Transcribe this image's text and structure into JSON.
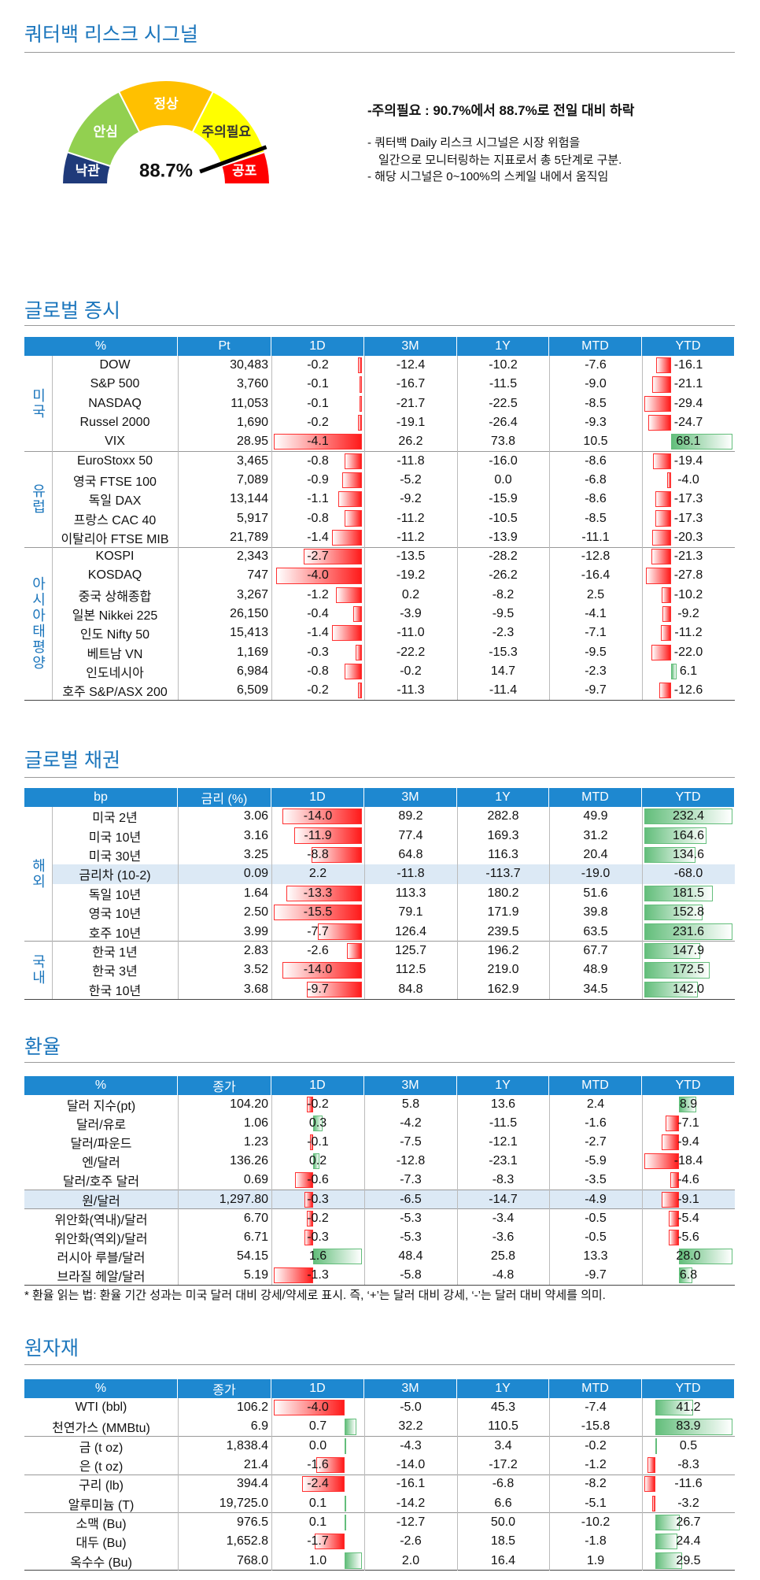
{
  "header": {
    "title": "쿼터백 리스크 시그널"
  },
  "gauge": {
    "value": 88.7,
    "label": "88.7%",
    "zones": [
      "낙관",
      "안심",
      "정상",
      "주의필요",
      "공포"
    ]
  },
  "summary": {
    "headline": "-주의필요 : 90.7%에서 88.7%로 전일 대비 하락",
    "notes": [
      "- 쿼터백 Daily 리스크 시그널은 시장 위험을",
      "일간으로 모니터링하는 지표로서 총 5단계로 구분.",
      "- 해당 시그널은 0~100%의 스케일 내에서 움직임"
    ]
  },
  "sections": [
    {
      "title": "글로벌 증시",
      "table": {
        "columns": [
          {
            "label": "%"
          },
          {
            "label": "Pt"
          },
          {
            "label": "1D",
            "bars": true
          },
          {
            "label": "3M"
          },
          {
            "label": "1Y"
          },
          {
            "label": "MTD"
          },
          {
            "label": "YTD",
            "bars": true
          }
        ],
        "groups": [
          {
            "label": "미국",
            "rows": [
              {
                "name": "DOW",
                "values": [
                  "30,483",
                  "-0.2",
                  "-12.4",
                  "-10.2",
                  "-7.6",
                  "-16.1"
                ]
              },
              {
                "name": "S&P 500",
                "values": [
                  "3,760",
                  "-0.1",
                  "-16.7",
                  "-11.5",
                  "-9.0",
                  "-21.1"
                ]
              },
              {
                "name": "NASDAQ",
                "values": [
                  "11,053",
                  "-0.1",
                  "-21.7",
                  "-22.5",
                  "-8.5",
                  "-29.4"
                ]
              },
              {
                "name": "Russel 2000",
                "values": [
                  "1,690",
                  "-0.2",
                  "-19.1",
                  "-26.4",
                  "-9.3",
                  "-24.7"
                ]
              },
              {
                "name": "VIX",
                "values": [
                  "28.95",
                  "-4.1",
                  "26.2",
                  "73.8",
                  "10.5",
                  "68.1"
                ]
              }
            ]
          },
          {
            "label": "유럽",
            "rows": [
              {
                "name": "EuroStoxx 50",
                "values": [
                  "3,465",
                  "-0.8",
                  "-11.8",
                  "-16.0",
                  "-8.6",
                  "-19.4"
                ]
              },
              {
                "name": "영국 FTSE 100",
                "values": [
                  "7,089",
                  "-0.9",
                  "-5.2",
                  "0.0",
                  "-6.8",
                  "-4.0"
                ]
              },
              {
                "name": "독일 DAX",
                "values": [
                  "13,144",
                  "-1.1",
                  "-9.2",
                  "-15.9",
                  "-8.6",
                  "-17.3"
                ]
              },
              {
                "name": "프랑스 CAC 40",
                "values": [
                  "5,917",
                  "-0.8",
                  "-11.2",
                  "-10.5",
                  "-8.5",
                  "-17.3"
                ]
              },
              {
                "name": "이탈리아 FTSE MIB",
                "values": [
                  "21,789",
                  "-1.4",
                  "-11.2",
                  "-13.9",
                  "-11.1",
                  "-20.3"
                ]
              }
            ]
          },
          {
            "label": "아시아태평양",
            "rows": [
              {
                "name": "KOSPI",
                "values": [
                  "2,343",
                  "-2.7",
                  "-13.5",
                  "-28.2",
                  "-12.8",
                  "-21.3"
                ]
              },
              {
                "name": "KOSDAQ",
                "values": [
                  "747",
                  "-4.0",
                  "-19.2",
                  "-26.2",
                  "-16.4",
                  "-27.8"
                ]
              },
              {
                "name": "중국 상해종합",
                "values": [
                  "3,267",
                  "-1.2",
                  "0.2",
                  "-8.2",
                  "2.5",
                  "-10.2"
                ]
              },
              {
                "name": "일본 Nikkei 225",
                "values": [
                  "26,150",
                  "-0.4",
                  "-3.9",
                  "-9.5",
                  "-4.1",
                  "-9.2"
                ]
              },
              {
                "name": "인도 Nifty 50",
                "values": [
                  "15,413",
                  "-1.4",
                  "-11.0",
                  "-2.3",
                  "-7.1",
                  "-11.2"
                ]
              },
              {
                "name": "베트남 VN",
                "values": [
                  "1,169",
                  "-0.3",
                  "-22.2",
                  "-15.3",
                  "-9.5",
                  "-22.0"
                ]
              },
              {
                "name": "인도네시아",
                "values": [
                  "6,984",
                  "-0.8",
                  "-0.2",
                  "14.7",
                  "-2.3",
                  "6.1"
                ]
              },
              {
                "name": "호주 S&P/ASX 200",
                "values": [
                  "6,509",
                  "-0.2",
                  "-11.3",
                  "-11.4",
                  "-9.7",
                  "-12.6"
                ]
              }
            ]
          }
        ]
      }
    },
    {
      "title": "글로벌 채권",
      "table": {
        "columns": [
          {
            "label": "bp"
          },
          {
            "label": "금리 (%)"
          },
          {
            "label": "1D",
            "bars": true
          },
          {
            "label": "3M"
          },
          {
            "label": "1Y"
          },
          {
            "label": "MTD"
          },
          {
            "label": "YTD",
            "bars": true
          }
        ],
        "groups": [
          {
            "label": "해외",
            "rows": [
              {
                "name": "미국 2년",
                "values": [
                  "3.06",
                  "-14.0",
                  "89.2",
                  "282.8",
                  "49.9",
                  "232.4"
                ]
              },
              {
                "name": "미국 10년",
                "values": [
                  "3.16",
                  "-11.9",
                  "77.4",
                  "169.3",
                  "31.2",
                  "164.6"
                ]
              },
              {
                "name": "미국 30년",
                "values": [
                  "3.25",
                  "-8.8",
                  "64.8",
                  "116.3",
                  "20.4",
                  "134.6"
                ]
              },
              {
                "name": "금리차 (10-2)",
                "highlight": true,
                "bars": false,
                "values": [
                  "0.09",
                  "2.2",
                  "-11.8",
                  "-113.7",
                  "-19.0",
                  "-68.0"
                ]
              },
              {
                "name": "독일 10년",
                "values": [
                  "1.64",
                  "-13.3",
                  "113.3",
                  "180.2",
                  "51.6",
                  "181.5"
                ]
              },
              {
                "name": "영국 10년",
                "values": [
                  "2.50",
                  "-15.5",
                  "79.1",
                  "171.9",
                  "39.8",
                  "152.8"
                ]
              },
              {
                "name": "호주 10년",
                "values": [
                  "3.99",
                  "-7.7",
                  "126.4",
                  "239.5",
                  "63.5",
                  "231.6"
                ]
              }
            ]
          },
          {
            "label": "국내",
            "rows": [
              {
                "name": "한국 1년",
                "values": [
                  "2.83",
                  "-2.6",
                  "125.7",
                  "196.2",
                  "67.7",
                  "147.9"
                ]
              },
              {
                "name": "한국 3년",
                "values": [
                  "3.52",
                  "-14.0",
                  "112.5",
                  "219.0",
                  "48.9",
                  "172.5"
                ]
              },
              {
                "name": "한국 10년",
                "values": [
                  "3.68",
                  "-9.7",
                  "84.8",
                  "162.9",
                  "34.5",
                  "142.0"
                ]
              }
            ]
          }
        ]
      }
    },
    {
      "title": "환율",
      "table": {
        "columns": [
          {
            "label": "%"
          },
          {
            "label": "종가"
          },
          {
            "label": "1D",
            "bars": true
          },
          {
            "label": "3M"
          },
          {
            "label": "1Y"
          },
          {
            "label": "MTD"
          },
          {
            "label": "YTD",
            "bars": true
          }
        ],
        "groups": [
          {
            "rows": [
              {
                "name": "달러 지수(pt)",
                "values": [
                  "104.20",
                  "-0.2",
                  "5.8",
                  "13.6",
                  "2.4",
                  "8.9"
                ]
              },
              {
                "name": "달러/유로",
                "values": [
                  "1.06",
                  "0.3",
                  "-4.2",
                  "-11.5",
                  "-1.6",
                  "-7.1"
                ]
              },
              {
                "name": "달러/파운드",
                "values": [
                  "1.23",
                  "-0.1",
                  "-7.5",
                  "-12.1",
                  "-2.7",
                  "-9.4"
                ]
              },
              {
                "name": "엔/달러",
                "values": [
                  "136.26",
                  "0.2",
                  "-12.8",
                  "-23.1",
                  "-5.9",
                  "-18.4"
                ]
              },
              {
                "name": "달러/호주 달러",
                "values": [
                  "0.69",
                  "-0.6",
                  "-7.3",
                  "-8.3",
                  "-3.5",
                  "-4.6"
                ]
              }
            ]
          },
          {
            "rows": [
              {
                "name": "원/달러",
                "highlight": true,
                "values": [
                  "1,297.80",
                  "-0.3",
                  "-6.5",
                  "-14.7",
                  "-4.9",
                  "-9.1"
                ]
              }
            ]
          },
          {
            "rows": [
              {
                "name": "위안화(역내)/달러",
                "values": [
                  "6.70",
                  "-0.2",
                  "-5.3",
                  "-3.4",
                  "-0.5",
                  "-5.4"
                ]
              },
              {
                "name": "위안화(역외)/달러",
                "values": [
                  "6.71",
                  "-0.3",
                  "-5.3",
                  "-3.6",
                  "-0.5",
                  "-5.6"
                ]
              },
              {
                "name": "러시아 루블/달러",
                "values": [
                  "54.15",
                  "1.6",
                  "48.4",
                  "25.8",
                  "13.3",
                  "28.0"
                ]
              },
              {
                "name": "브라질 헤알/달러",
                "values": [
                  "5.19",
                  "-1.3",
                  "-5.8",
                  "-4.8",
                  "-9.7",
                  "6.8"
                ]
              }
            ]
          }
        ]
      },
      "footnote": "* 환율 읽는 법: 환율 기간 성과는 미국 달러 대비 강세/약세로 표시. 즉, ‘+’는 달러 대비 강세, ‘-’는 달러 대비 약세를 의미."
    },
    {
      "title": "원자재",
      "table": {
        "columns": [
          {
            "label": "%"
          },
          {
            "label": "종가"
          },
          {
            "label": "1D",
            "bars": true
          },
          {
            "label": "3M"
          },
          {
            "label": "1Y"
          },
          {
            "label": "MTD"
          },
          {
            "label": "YTD",
            "bars": true
          }
        ],
        "groups": [
          {
            "rows": [
              {
                "name": "WTI (bbl)",
                "values": [
                  "106.2",
                  "-4.0",
                  "-5.0",
                  "45.3",
                  "-7.4",
                  "41.2"
                ]
              },
              {
                "name": "천연가스 (MMBtu)",
                "values": [
                  "6.9",
                  "0.7",
                  "32.2",
                  "110.5",
                  "-15.8",
                  "83.9"
                ]
              }
            ]
          },
          {
            "rows": [
              {
                "name": "금 (t oz)",
                "values": [
                  "1,838.4",
                  "0.0",
                  "-4.3",
                  "3.4",
                  "-0.2",
                  "0.5"
                ]
              },
              {
                "name": "은 (t oz)",
                "values": [
                  "21.4",
                  "-1.6",
                  "-14.0",
                  "-17.2",
                  "-1.2",
                  "-8.3"
                ]
              }
            ]
          },
          {
            "rows": [
              {
                "name": "구리 (lb)",
                "values": [
                  "394.4",
                  "-2.4",
                  "-16.1",
                  "-6.8",
                  "-8.2",
                  "-11.6"
                ]
              },
              {
                "name": "알루미늄 (T)",
                "values": [
                  "19,725.0",
                  "0.1",
                  "-14.2",
                  "6.6",
                  "-5.1",
                  "-3.2"
                ]
              }
            ]
          },
          {
            "rows": [
              {
                "name": "소맥 (Bu)",
                "values": [
                  "976.5",
                  "0.1",
                  "-12.7",
                  "50.0",
                  "-10.2",
                  "26.7"
                ]
              },
              {
                "name": "대두 (Bu)",
                "values": [
                  "1,652.8",
                  "-1.7",
                  "-2.6",
                  "18.5",
                  "-1.8",
                  "24.4"
                ]
              },
              {
                "name": "옥수수 (Bu)",
                "values": [
                  "768.0",
                  "1.0",
                  "2.0",
                  "16.4",
                  "1.9",
                  "29.5"
                ]
              }
            ]
          }
        ]
      }
    }
  ]
}
